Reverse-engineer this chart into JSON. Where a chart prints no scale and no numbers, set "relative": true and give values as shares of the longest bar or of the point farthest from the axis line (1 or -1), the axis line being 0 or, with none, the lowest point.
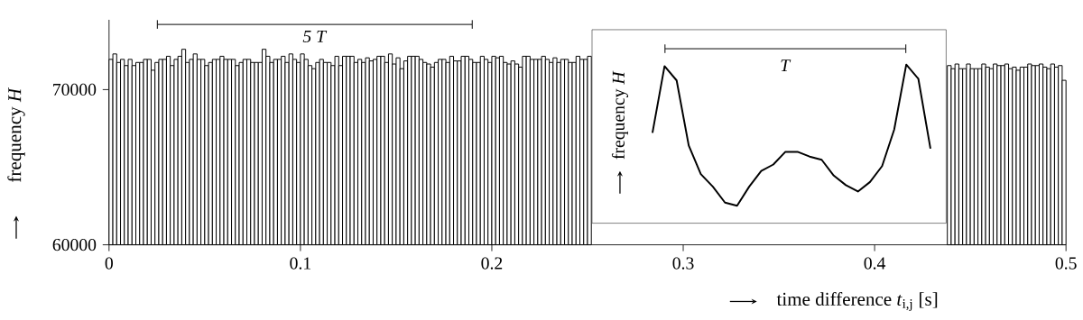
{
  "chart_data": [
    {
      "type": "histogram",
      "xlabel": "time difference *t*$_{i,j}$ [s]",
      "ylabel": "frequency *H*",
      "annotations": [
        "*5 T*"
      ],
      "color": "#000000",
      "xlim": [
        0,
        0.5
      ],
      "ylim": [
        60000,
        74500
      ],
      "xticks": [
        0,
        0.1,
        0.2,
        0.3,
        0.4,
        0.5
      ],
      "yticks": [
        60000,
        70000
      ],
      "bins": [
        0,
        0.002,
        0.004,
        0.006,
        0.008,
        0.01,
        0.012,
        0.014,
        0.016,
        0.018,
        0.02,
        0.022,
        0.024,
        0.026,
        0.028,
        0.03,
        0.032,
        0.034,
        0.036,
        0.038,
        0.04,
        0.042,
        0.044,
        0.046,
        0.048,
        0.05,
        0.052,
        0.054,
        0.056,
        0.058,
        0.06,
        0.062,
        0.064,
        0.066,
        0.068,
        0.07,
        0.072,
        0.074,
        0.076,
        0.078,
        0.08,
        0.082,
        0.084,
        0.086,
        0.088,
        0.09,
        0.092,
        0.094,
        0.096,
        0.098,
        0.1,
        0.102,
        0.104,
        0.106,
        0.108,
        0.11,
        0.112,
        0.114,
        0.116,
        0.118,
        0.12,
        0.122,
        0.124,
        0.126,
        0.128,
        0.13,
        0.132,
        0.134,
        0.136,
        0.138,
        0.14,
        0.142,
        0.144,
        0.146,
        0.148,
        0.15,
        0.152,
        0.154,
        0.156,
        0.158,
        0.16,
        0.162,
        0.164,
        0.166,
        0.168,
        0.17,
        0.172,
        0.174,
        0.176,
        0.178,
        0.18,
        0.182,
        0.184,
        0.186,
        0.188,
        0.19,
        0.192,
        0.194,
        0.196,
        0.198,
        0.2,
        0.202,
        0.204,
        0.206,
        0.208,
        0.21,
        0.212,
        0.214,
        0.216,
        0.218,
        0.22,
        0.222,
        0.224,
        0.226,
        0.228,
        0.23,
        0.232,
        0.234,
        0.236,
        0.238,
        0.24,
        0.242,
        0.244,
        0.246,
        0.248,
        0.25,
        0.252,
        0.254,
        0.256,
        0.258,
        0.26,
        0.262,
        0.264,
        0.266,
        0.268,
        0.27,
        0.272,
        0.274,
        0.276,
        0.278,
        0.28,
        0.282,
        0.284,
        0.286,
        0.288,
        0.29,
        0.292,
        0.294,
        0.296,
        0.298,
        0.3,
        0.302,
        0.304,
        0.306,
        0.308,
        0.31,
        0.312,
        0.314,
        0.316,
        0.318,
        0.32,
        0.322,
        0.324,
        0.326,
        0.328,
        0.33,
        0.332,
        0.334,
        0.336,
        0.338,
        0.34,
        0.342,
        0.344,
        0.346,
        0.348,
        0.35,
        0.352,
        0.354,
        0.356,
        0.358,
        0.36,
        0.362,
        0.364,
        0.366,
        0.368,
        0.37,
        0.372,
        0.374,
        0.376,
        0.378,
        0.38,
        0.382,
        0.384,
        0.386,
        0.388,
        0.39,
        0.392,
        0.394,
        0.396,
        0.398,
        0.4,
        0.402,
        0.404,
        0.406,
        0.408,
        0.41,
        0.412,
        0.414,
        0.416,
        0.418,
        0.42,
        0.422,
        0.424,
        0.426,
        0.428,
        0.43,
        0.432,
        0.434,
        0.436,
        0.438,
        0.44,
        0.442,
        0.444,
        0.446,
        0.448,
        0.45,
        0.452,
        0.454,
        0.456,
        0.458,
        0.46,
        0.462,
        0.464,
        0.466,
        0.468,
        0.47,
        0.472,
        0.474,
        0.476,
        0.478,
        0.48,
        0.482,
        0.484,
        0.486,
        0.488,
        0.49,
        0.492,
        0.494,
        0.496,
        0.498,
        0.5
      ],
      "values": [
        71950,
        72300,
        71750,
        71950,
        71550,
        71950,
        71550,
        71750,
        71750,
        71950,
        71950,
        71250,
        71750,
        71950,
        71950,
        72150,
        71550,
        71950,
        72150,
        72600,
        71750,
        71950,
        72300,
        71950,
        71950,
        71550,
        71750,
        71950,
        71950,
        72150,
        71950,
        71950,
        71950,
        71550,
        71750,
        71950,
        71950,
        71750,
        71750,
        71750,
        72600,
        72150,
        71750,
        71950,
        71950,
        72150,
        71750,
        72300,
        71950,
        71750,
        72300,
        71950,
        71550,
        71350,
        71750,
        71950,
        71750,
        71750,
        71550,
        72150,
        71550,
        72150,
        72150,
        72150,
        71750,
        71950,
        71750,
        72050,
        71850,
        71950,
        72150,
        72150,
        71750,
        72300,
        71650,
        72050,
        71350,
        71850,
        72150,
        72150,
        72150,
        71950,
        71750,
        71650,
        71450,
        71750,
        71950,
        71950,
        71750,
        72150,
        71850,
        71850,
        72150,
        72150,
        71950,
        71750,
        71750,
        72150,
        71950,
        71750,
        72150,
        72050,
        72150,
        71750,
        71650,
        71850,
        71650,
        71450,
        72150,
        72150,
        71950,
        71950,
        71950,
        72150,
        71950,
        71750,
        72050,
        71750,
        71950,
        71950,
        71750,
        71750,
        72150,
        71950,
        71950,
        72150,
        null,
        null,
        null,
        null,
        null,
        null,
        null,
        null,
        null,
        null,
        null,
        null,
        null,
        null,
        null,
        null,
        null,
        null,
        null,
        null,
        null,
        null,
        null,
        null,
        null,
        null,
        null,
        null,
        null,
        null,
        null,
        null,
        null,
        null,
        null,
        null,
        null,
        null,
        null,
        null,
        null,
        null,
        null,
        null,
        null,
        null,
        null,
        null,
        null,
        null,
        null,
        null,
        null,
        null,
        null,
        null,
        null,
        null,
        null,
        null,
        null,
        null,
        null,
        null,
        null,
        null,
        null,
        null,
        null,
        null,
        null,
        null,
        null,
        null,
        null,
        null,
        null,
        null,
        null,
        null,
        null,
        null,
        null,
        null,
        null,
        null,
        null,
        null,
        null,
        null,
        null,
        null,
        null,
        71550,
        71350,
        71650,
        71350,
        71350,
        71650,
        71350,
        71350,
        71350,
        71650,
        71450,
        71350,
        71650,
        71550,
        71550,
        71650,
        71350,
        71450,
        71250,
        71450,
        71450,
        71650,
        71550,
        71550,
        71650,
        71450,
        71350,
        71650,
        71450,
        71550,
        70600
      ]
    },
    {
      "type": "line",
      "relative": true,
      "ylabel": "frequency *H*",
      "annotations": [
        "*T*"
      ],
      "color": "#000000",
      "categories": [
        null,
        null,
        null,
        null,
        null,
        null,
        null,
        null,
        null,
        null,
        null,
        null,
        null,
        null,
        null,
        null,
        null,
        null,
        null,
        null,
        null,
        null,
        null,
        null
      ],
      "values": [
        0.57,
        0.99,
        0.9,
        0.49,
        0.31,
        0.23,
        0.13,
        0.11,
        0.23,
        0.33,
        0.37,
        0.45,
        0.45,
        0.42,
        0.4,
        0.3,
        0.24,
        0.2,
        0.26,
        0.36,
        0.59,
        1,
        0.91,
        0.47
      ]
    }
  ]
}
